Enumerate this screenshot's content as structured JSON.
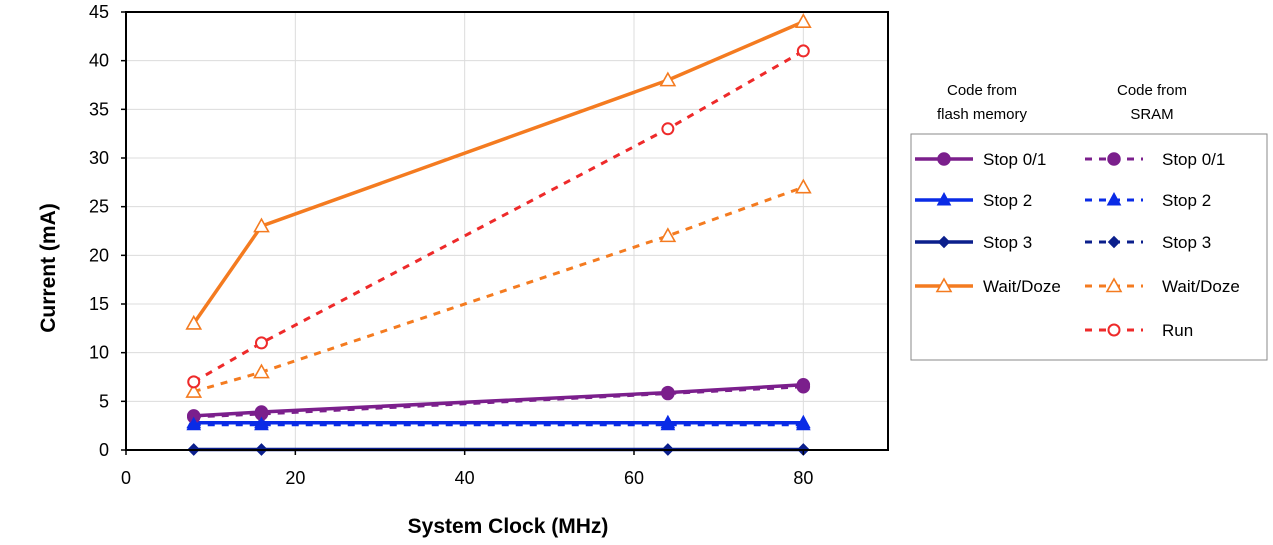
{
  "chart_data": {
    "type": "line",
    "xlabel": "System Clock (MHz)",
    "ylabel": "Current (mA)",
    "xlim": [
      0,
      90
    ],
    "ylim": [
      0,
      45
    ],
    "xticks": [
      0,
      20,
      40,
      60,
      80
    ],
    "yticks": [
      0,
      5,
      10,
      15,
      20,
      25,
      30,
      35,
      40,
      45
    ],
    "x": [
      8,
      16,
      64,
      80
    ],
    "grid": true,
    "legend_position": "right",
    "legend_headers": {
      "flash": [
        "Code from",
        "flash memory"
      ],
      "sram": [
        "Code from",
        "SRAM"
      ]
    },
    "series": [
      {
        "name": "Stop 0/1",
        "group": "flash",
        "values": [
          3.5,
          3.9,
          5.9,
          6.7
        ],
        "color": "#7B1F8C",
        "marker": "circle-filled",
        "dash": "solid"
      },
      {
        "name": "Stop 2",
        "group": "flash",
        "values": [
          2.8,
          2.8,
          2.8,
          2.8
        ],
        "color": "#0A2BE6",
        "marker": "triangle-filled",
        "dash": "solid"
      },
      {
        "name": "Stop 3",
        "group": "flash",
        "values": [
          0.05,
          0.05,
          0.05,
          0.05
        ],
        "color": "#0B1F8C",
        "marker": "diamond-filled",
        "dash": "solid"
      },
      {
        "name": "Wait/Doze",
        "group": "flash",
        "values": [
          13,
          23,
          38,
          44
        ],
        "color": "#F47B20",
        "marker": "triangle-open",
        "dash": "solid"
      },
      {
        "name": "Stop 0/1",
        "group": "sram",
        "values": [
          3.4,
          3.7,
          5.8,
          6.5
        ],
        "color": "#7B1F8C",
        "marker": "circle-filled",
        "dash": "dashed"
      },
      {
        "name": "Stop 2",
        "group": "sram",
        "values": [
          2.6,
          2.6,
          2.6,
          2.6
        ],
        "color": "#0A2BE6",
        "marker": "triangle-filled",
        "dash": "dashed"
      },
      {
        "name": "Stop 3",
        "group": "sram",
        "values": [
          0.05,
          0.05,
          0.05,
          0.05
        ],
        "color": "#0B1F8C",
        "marker": "diamond-filled",
        "dash": "dashed"
      },
      {
        "name": "Wait/Doze",
        "group": "sram",
        "values": [
          6,
          8,
          22,
          27
        ],
        "color": "#F47B20",
        "marker": "triangle-open",
        "dash": "dashed"
      },
      {
        "name": "Run",
        "group": "sram",
        "values": [
          7,
          11,
          33,
          41
        ],
        "color": "#EE2A2A",
        "marker": "circle-open",
        "dash": "dashed"
      }
    ]
  }
}
